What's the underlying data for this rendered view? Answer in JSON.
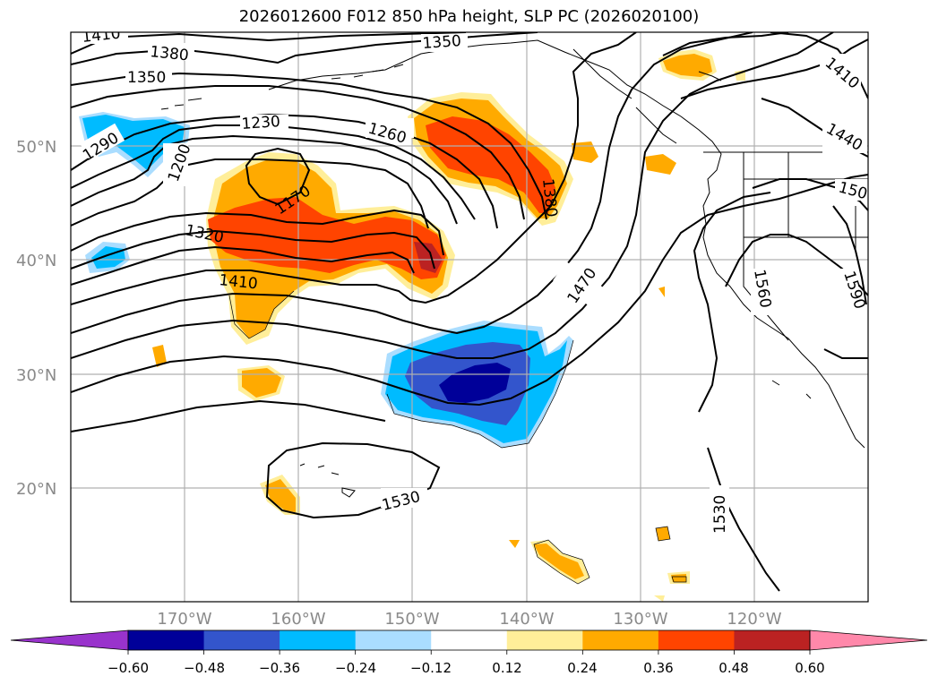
{
  "title": "2026012600 F012 850 hPa height, SLP PC (2026020100)",
  "map": {
    "extent_lon": [
      -180,
      -110
    ],
    "extent_lat": [
      10,
      60
    ],
    "lat_ticks": [
      {
        "v": 50,
        "label": "50°N"
      },
      {
        "v": 40,
        "label": "40°N"
      },
      {
        "v": 30,
        "label": "30°N"
      },
      {
        "v": 20,
        "label": "20°N"
      }
    ],
    "lon_ticks": [
      {
        "v": -170,
        "label": "170°W"
      },
      {
        "v": -160,
        "label": "160°W"
      },
      {
        "v": -150,
        "label": "150°W"
      },
      {
        "v": -140,
        "label": "140°W"
      },
      {
        "v": -130,
        "label": "130°W"
      },
      {
        "v": -120,
        "label": "120°W"
      }
    ],
    "contour_labels": [
      "1410",
      "1380",
      "1350",
      "1350",
      "1290",
      "1230",
      "1260",
      "1200",
      "1170",
      "1320",
      "1410",
      "1380",
      "1470",
      "1530",
      "1530",
      "1560",
      "1590",
      "1410",
      "1440",
      "150"
    ]
  },
  "colorbar": {
    "labels": [
      "−0.60",
      "−0.48",
      "−0.36",
      "−0.24",
      "−0.12",
      "0.12",
      "0.24",
      "0.36",
      "0.48",
      "0.60"
    ],
    "colors": [
      "#9933cc",
      "#000099",
      "#3355cc",
      "#00bbff",
      "#aaddff",
      "#ffffff",
      "#ffee99",
      "#ffaa00",
      "#ff4400",
      "#bb2222",
      "#ff88aa"
    ]
  }
}
